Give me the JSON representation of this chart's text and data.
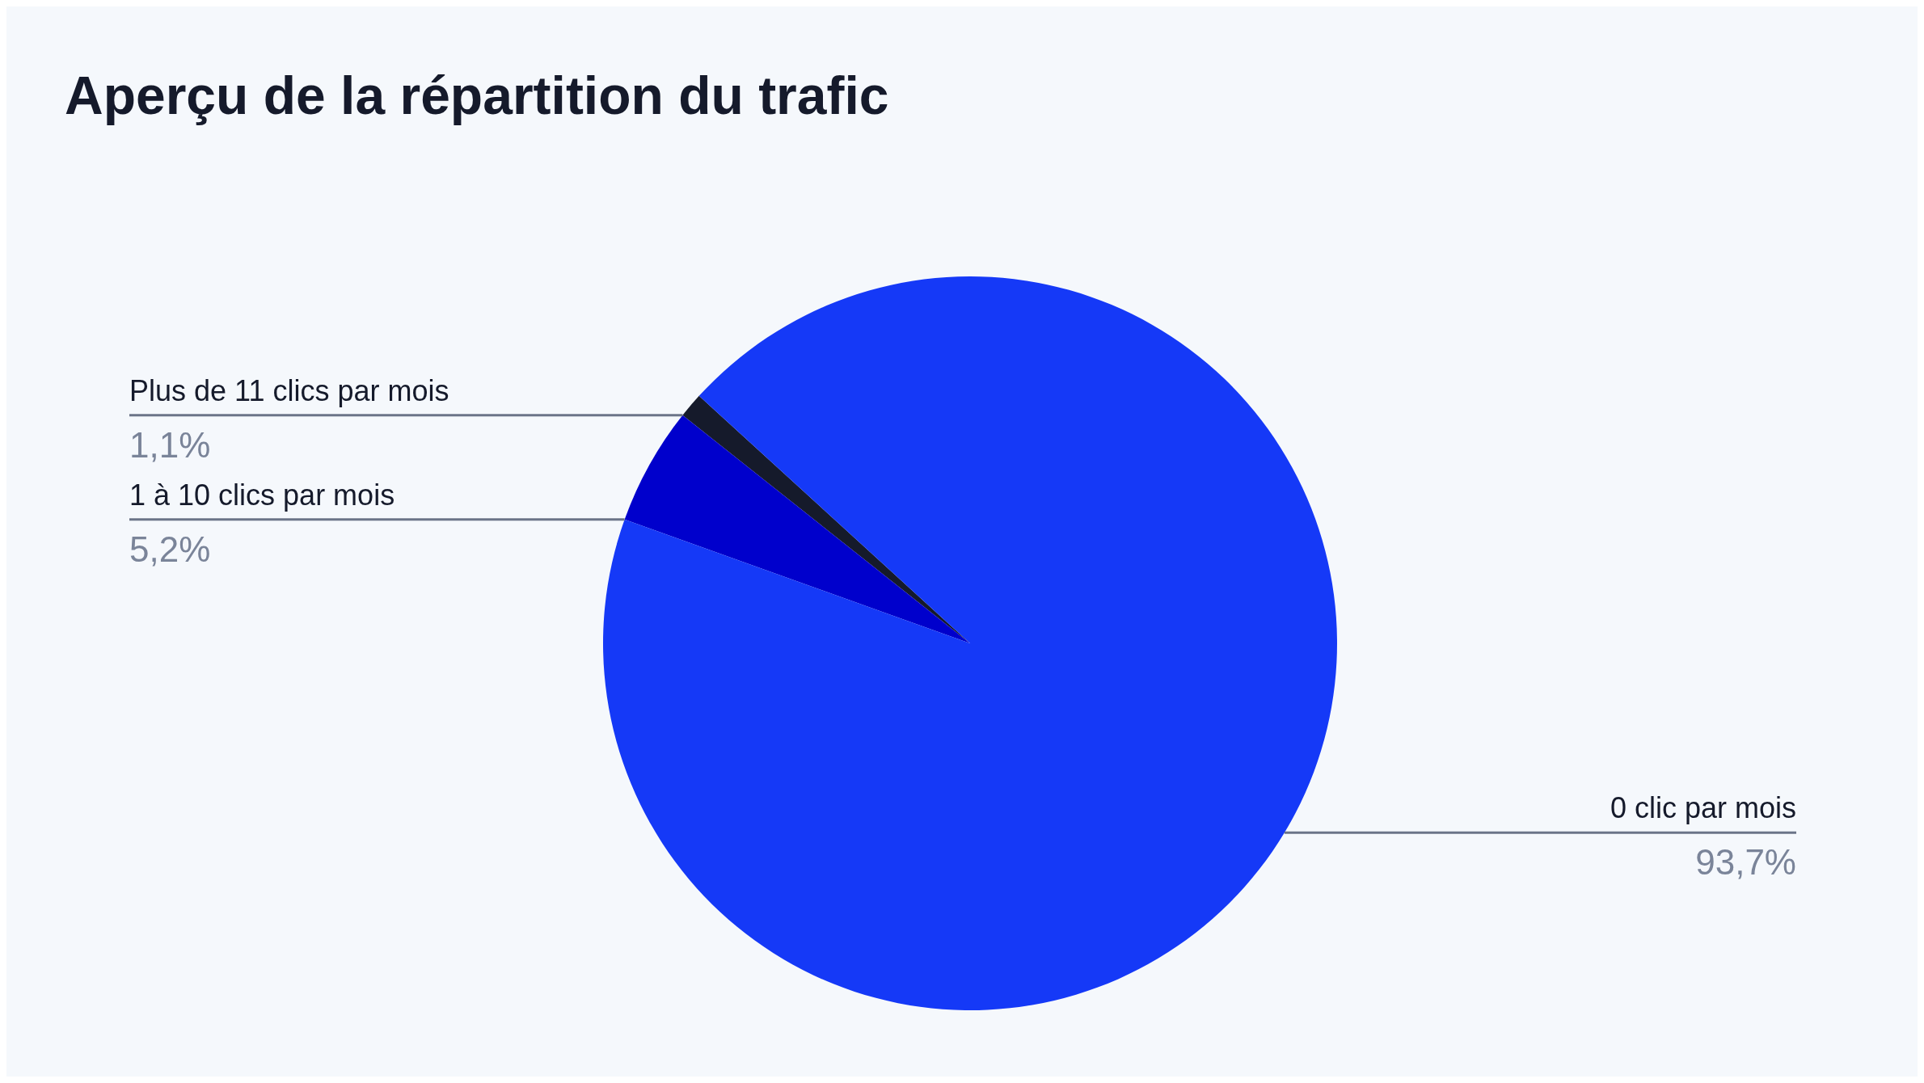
{
  "chart_data": {
    "type": "pie",
    "title": "Aperçu de la répartition du trafic",
    "categories": [
      "Plus de 11 clics par mois",
      "1 à 10 clics par mois",
      "0 clic par mois"
    ],
    "values": [
      1.1,
      5.2,
      93.7
    ],
    "colors": [
      "#151a2b",
      "#0000cc",
      "#1539f7"
    ],
    "value_labels": [
      "1,1%",
      "5,2%",
      "93,7%"
    ]
  }
}
